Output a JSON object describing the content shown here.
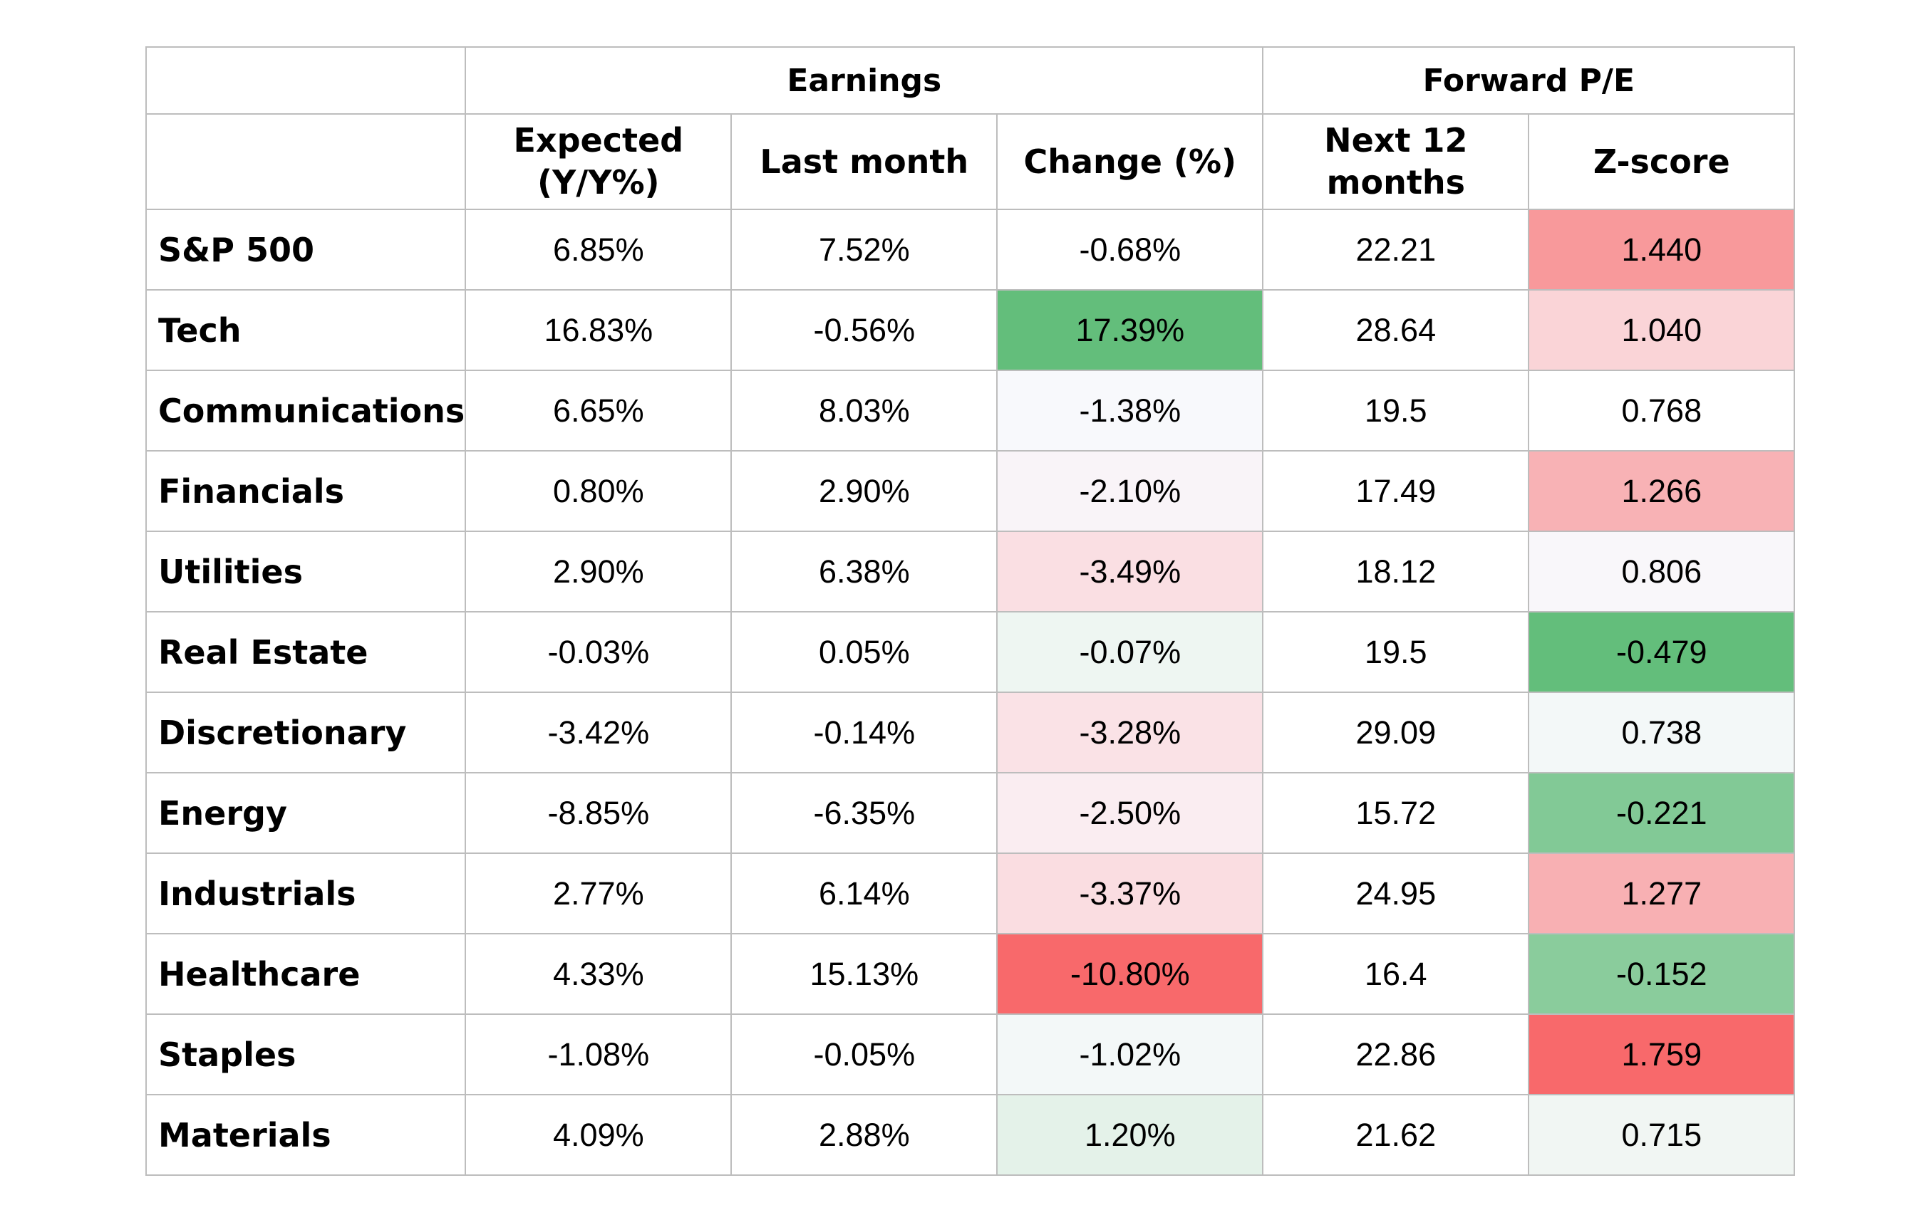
{
  "chart_data": {
    "type": "heatmap",
    "column_groups": [
      {
        "label": "",
        "span": 1
      },
      {
        "label": "Earnings",
        "span": 3
      },
      {
        "label": "Forward P/E",
        "span": 2
      }
    ],
    "columns": [
      {
        "key": "label",
        "header": ""
      },
      {
        "key": "expected",
        "header": "Expected\n(Y/Y%)"
      },
      {
        "key": "last_month",
        "header": "Last month"
      },
      {
        "key": "change",
        "header": "Change (%)"
      },
      {
        "key": "next12",
        "header": "Next 12\nmonths"
      },
      {
        "key": "zscore",
        "header": "Z-score"
      }
    ],
    "rows": [
      {
        "label": "S&P 500",
        "expected": "6.85%",
        "last_month": "7.52%",
        "change": "-0.68%",
        "next12": "22.21",
        "zscore": "1.440"
      },
      {
        "label": "Tech",
        "expected": "16.83%",
        "last_month": "-0.56%",
        "change": "17.39%",
        "next12": "28.64",
        "zscore": "1.040"
      },
      {
        "label": "Communications",
        "expected": "6.65%",
        "last_month": "8.03%",
        "change": "-1.38%",
        "next12": "19.5",
        "zscore": "0.768"
      },
      {
        "label": "Financials",
        "expected": "0.80%",
        "last_month": "2.90%",
        "change": "-2.10%",
        "next12": "17.49",
        "zscore": "1.266"
      },
      {
        "label": "Utilities",
        "expected": "2.90%",
        "last_month": "6.38%",
        "change": "-3.49%",
        "next12": "18.12",
        "zscore": "0.806"
      },
      {
        "label": "Real Estate",
        "expected": "-0.03%",
        "last_month": "0.05%",
        "change": "-0.07%",
        "next12": "19.5",
        "zscore": "-0.479"
      },
      {
        "label": "Discretionary",
        "expected": "-3.42%",
        "last_month": "-0.14%",
        "change": "-3.28%",
        "next12": "29.09",
        "zscore": "0.738"
      },
      {
        "label": "Energy",
        "expected": "-8.85%",
        "last_month": "-6.35%",
        "change": "-2.50%",
        "next12": "15.72",
        "zscore": "-0.221"
      },
      {
        "label": "Industrials",
        "expected": "2.77%",
        "last_month": "6.14%",
        "change": "-3.37%",
        "next12": "24.95",
        "zscore": "1.277"
      },
      {
        "label": "Healthcare",
        "expected": "4.33%",
        "last_month": "15.13%",
        "change": "-10.80%",
        "next12": "16.4",
        "zscore": "-0.152"
      },
      {
        "label": "Staples",
        "expected": "-1.08%",
        "last_month": "-0.05%",
        "change": "-1.02%",
        "next12": "22.86",
        "zscore": "1.759"
      },
      {
        "label": "Materials",
        "expected": "4.09%",
        "last_month": "2.88%",
        "change": "1.20%",
        "next12": "21.62",
        "zscore": "0.715"
      }
    ],
    "cell_colors": {
      "change": [
        "#ffffff",
        "#63be7b",
        "#f8f9fc",
        "#f9f4f8",
        "#fadfe3",
        "#eef6f2",
        "#fae2e6",
        "#faedf1",
        "#fadde1",
        "#f8696b",
        "#f3f8f8",
        "#e4f2e9"
      ],
      "zscore": [
        "#f8999b",
        "#fad4d7",
        "#ffffff",
        "#f8b2b5",
        "#f9f7fa",
        "#63be7b",
        "#f3f8f8",
        "#82c996",
        "#f8b0b3",
        "#8acc9c",
        "#f8696b",
        "#f1f6f3"
      ]
    }
  }
}
